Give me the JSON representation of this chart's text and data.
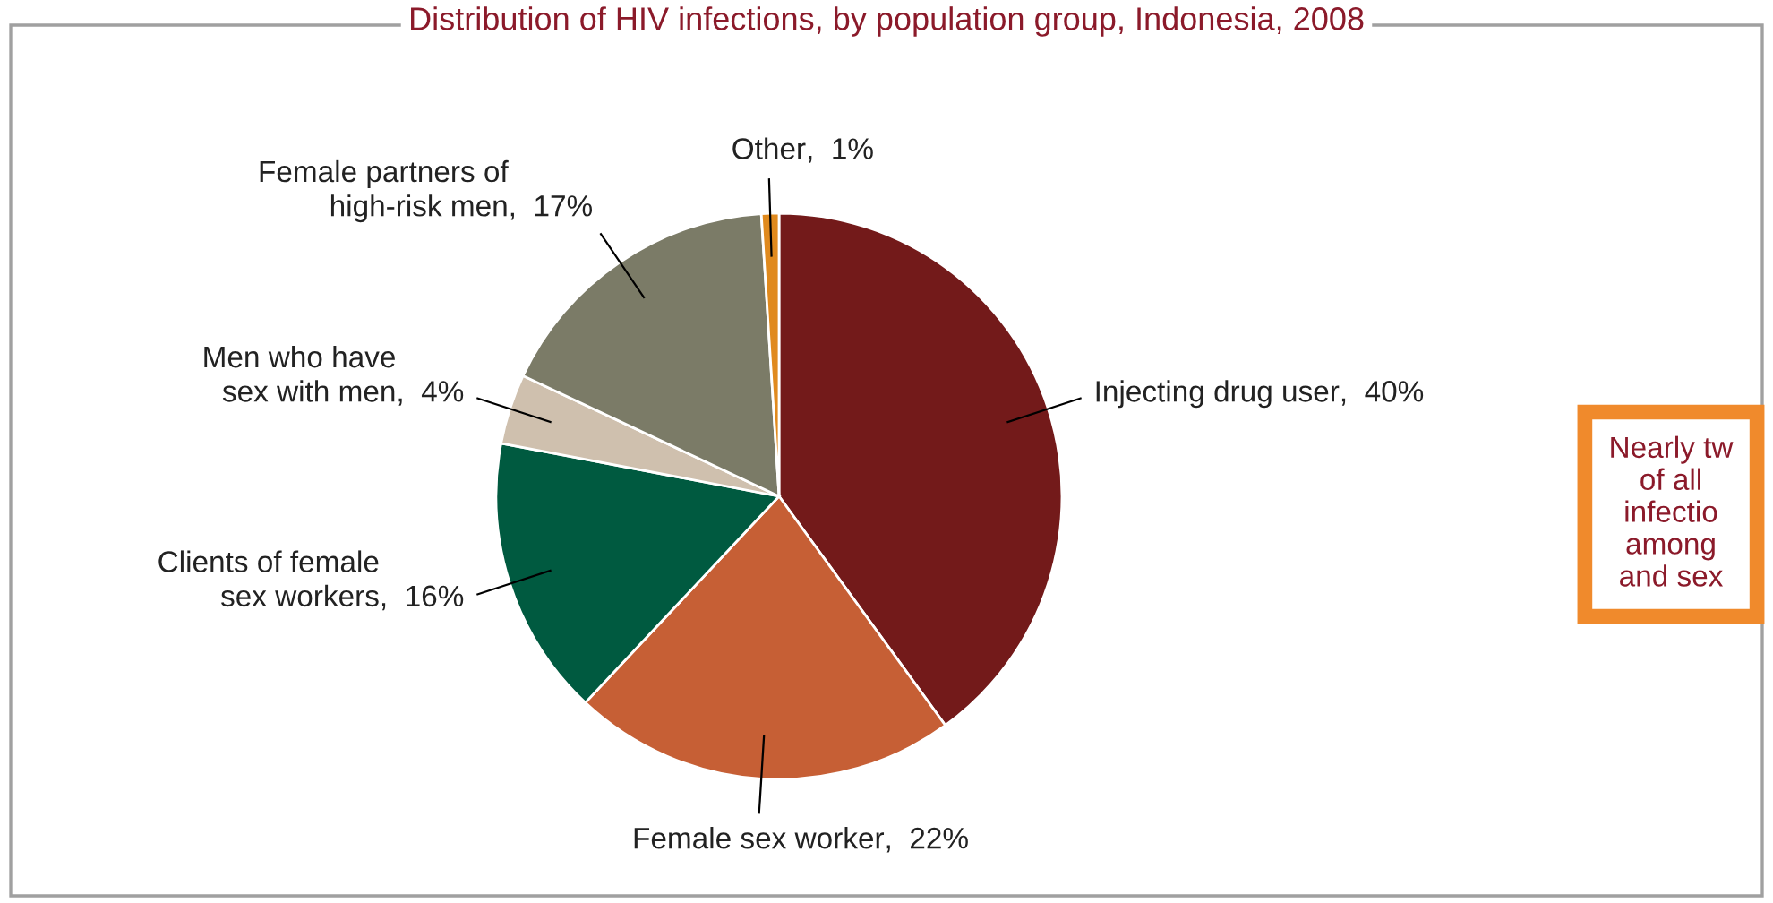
{
  "chart_data": {
    "type": "pie",
    "title": "Distribution of HIV infections, by population group, Indonesia, 2008",
    "categories": [
      "Injecting drug user",
      "Female sex worker",
      "Clients of female\nsex workers",
      "Men who have\nsex with men",
      "Female partners of\nhigh-risk men",
      "Other"
    ],
    "value_labels": [
      ",  40%",
      ",  22%",
      ",  16%",
      ",  4%",
      ",  17%",
      ",  1%"
    ],
    "values": [
      40,
      22,
      16,
      4,
      17,
      1
    ],
    "colors": [
      "#731a1a",
      "#c65f35",
      "#005a40",
      "#cfc0ae",
      "#7b7b67",
      "#e08a1e"
    ],
    "annotations": [
      "Nearly tw\nof all\ninfectio\namong\nand sex"
    ]
  }
}
